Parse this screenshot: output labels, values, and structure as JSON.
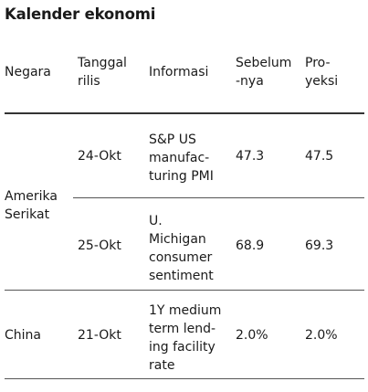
{
  "title": "Kalender ekonomi",
  "headers": {
    "country": "Negara",
    "date_line1": "Tanggal",
    "date_line2": "rilis",
    "info": "Informasi",
    "prev_line1": "Sebelum",
    "prev_line2": "-nya",
    "proj_line1": "Pro-",
    "proj_line2": "yeksi"
  },
  "groups": [
    {
      "country_line1": "Amerika",
      "country_line2": "Serikat",
      "rows": [
        {
          "date": "24-Okt",
          "info_lines": [
            "S&P US",
            "manufac-",
            "turing PMI"
          ],
          "previous": "47.3",
          "projection": "47.5"
        },
        {
          "date": "25-Okt",
          "info_lines": [
            "U.",
            "Michigan",
            "consumer",
            "sentiment"
          ],
          "previous": "68.9",
          "projection": "69.3"
        }
      ]
    },
    {
      "country_line1": "China",
      "rows": [
        {
          "date": "21-Okt",
          "info_lines": [
            "1Y medium",
            "term lend-",
            "ing facility",
            "rate"
          ],
          "previous": "2.0%",
          "projection": "2.0%"
        }
      ]
    }
  ]
}
